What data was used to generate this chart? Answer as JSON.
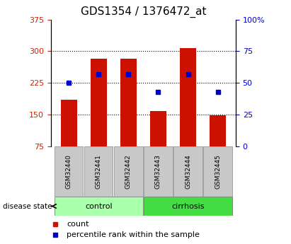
{
  "title": "GDS1354 / 1376472_at",
  "samples": [
    "GSM32440",
    "GSM32441",
    "GSM32442",
    "GSM32443",
    "GSM32444",
    "GSM32445"
  ],
  "bar_heights": [
    185,
    283,
    283,
    158,
    307,
    148
  ],
  "bar_baseline": 75,
  "percentile_pct": [
    50,
    57,
    57,
    43,
    57,
    43
  ],
  "groups": [
    {
      "label": "control",
      "indices": [
        0,
        1,
        2
      ],
      "color": "#aaffaa"
    },
    {
      "label": "cirrhosis",
      "indices": [
        3,
        4,
        5
      ],
      "color": "#44dd44"
    }
  ],
  "ylim_left": [
    75,
    375
  ],
  "ylim_right": [
    0,
    100
  ],
  "yticks_left": [
    75,
    150,
    225,
    300,
    375
  ],
  "yticks_right": [
    0,
    25,
    50,
    75,
    100
  ],
  "ytick_labels_right": [
    "0",
    "25",
    "50",
    "75",
    "100%"
  ],
  "bar_color": "#cc1100",
  "percentile_color": "#0000cc",
  "grid_color": "#000000",
  "left_tick_color": "#cc2200",
  "right_tick_color": "#0000cc",
  "title_fontsize": 11,
  "axis_fontsize": 8,
  "legend_fontsize": 8,
  "bar_width": 0.55,
  "disease_state_label": "disease state",
  "legend_items": [
    "count",
    "percentile rank within the sample"
  ],
  "background_color": "#ffffff"
}
